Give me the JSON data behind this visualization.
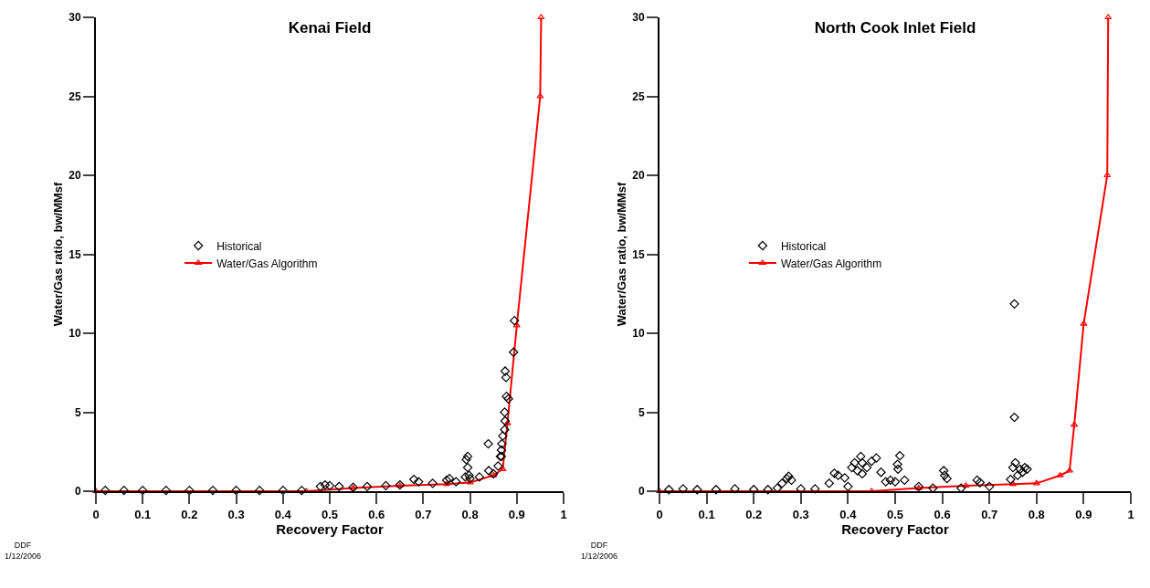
{
  "chart_data": [
    {
      "type": "scatter",
      "title": "Kenai Field",
      "xlabel": "Recovery Factor",
      "ylabel": "Water/Gas ratio, bw/MMsf",
      "annotations": [
        "DDF\n1/12/2006"
      ],
      "xlim": [
        0,
        1
      ],
      "xticks": [
        0,
        0.1,
        0.2,
        0.3,
        0.4,
        0.5,
        0.6,
        0.7,
        0.8,
        0.9,
        1
      ],
      "ylim": [
        0,
        30
      ],
      "yticks": [
        0,
        5,
        10,
        15,
        20,
        25,
        30
      ],
      "grid": false,
      "legend": "left",
      "series": [
        {
          "name": "Historical",
          "type": "scatter",
          "marker": "diamond",
          "color": "#000000",
          "x": [
            0.02,
            0.06,
            0.1,
            0.15,
            0.2,
            0.25,
            0.3,
            0.35,
            0.4,
            0.44,
            0.48,
            0.49,
            0.5,
            0.52,
            0.55,
            0.58,
            0.62,
            0.65,
            0.68,
            0.69,
            0.72,
            0.75,
            0.756,
            0.77,
            0.79,
            0.792,
            0.795,
            0.795,
            0.798,
            0.8,
            0.82,
            0.839,
            0.84,
            0.85,
            0.86,
            0.865,
            0.867,
            0.867,
            0.868,
            0.87,
            0.874,
            0.875,
            0.874,
            0.882,
            0.877,
            0.875,
            0.878,
            0.893,
            0.895
          ],
          "values": [
            0.05,
            0.05,
            0.05,
            0.05,
            0.05,
            0.05,
            0.05,
            0.05,
            0.05,
            0.05,
            0.3,
            0.4,
            0.35,
            0.3,
            0.25,
            0.3,
            0.35,
            0.4,
            0.75,
            0.6,
            0.5,
            0.7,
            0.8,
            0.6,
            0.9,
            2.0,
            2.2,
            1.5,
            1.0,
            0.8,
            0.9,
            3.0,
            1.3,
            1.1,
            1.6,
            2.2,
            2.6,
            2.2,
            3.0,
            3.5,
            3.9,
            4.45,
            5.0,
            5.85,
            7.2,
            7.6,
            6.0,
            8.8,
            10.8
          ]
        },
        {
          "name": "Water/Gas Algorithm",
          "type": "line",
          "marker": "triangle",
          "line_style": "solid",
          "color": "#ff0000",
          "x": [
            0,
            0.45,
            0.55,
            0.65,
            0.75,
            0.8,
            0.85,
            0.87,
            0.88,
            0.9,
            0.95,
            0.952
          ],
          "values": [
            0,
            0,
            0.2,
            0.35,
            0.45,
            0.55,
            1.0,
            1.4,
            4.3,
            10.5,
            25,
            30
          ]
        }
      ]
    },
    {
      "type": "scatter",
      "title": "North Cook Inlet Field",
      "xlabel": "Recovery Factor",
      "ylabel": "Water/Gas ratio, bw/MMsf",
      "annotations": [
        "DDF\n1/12/2006"
      ],
      "xlim": [
        0,
        1
      ],
      "xticks": [
        0,
        0.1,
        0.2,
        0.3,
        0.4,
        0.5,
        0.6,
        0.7,
        0.8,
        0.9,
        1
      ],
      "ylim": [
        0,
        30
      ],
      "yticks": [
        0,
        5,
        10,
        15,
        20,
        25,
        30
      ],
      "grid": false,
      "legend": "left",
      "series": [
        {
          "name": "Historical",
          "type": "scatter",
          "marker": "diamond",
          "color": "#000000",
          "x": [
            0.02,
            0.05,
            0.08,
            0.12,
            0.16,
            0.2,
            0.23,
            0.25,
            0.26,
            0.27,
            0.274,
            0.28,
            0.3,
            0.33,
            0.36,
            0.371,
            0.379,
            0.393,
            0.4,
            0.408,
            0.414,
            0.42,
            0.427,
            0.43,
            0.43,
            0.44,
            0.45,
            0.46,
            0.47,
            0.48,
            0.49,
            0.5,
            0.505,
            0.506,
            0.51,
            0.52,
            0.55,
            0.58,
            0.603,
            0.605,
            0.61,
            0.64,
            0.674,
            0.68,
            0.7,
            0.745,
            0.75,
            0.753,
            0.753,
            0.755,
            0.76,
            0.765,
            0.77,
            0.775,
            0.78
          ],
          "values": [
            0.1,
            0.15,
            0.1,
            0.1,
            0.15,
            0.1,
            0.1,
            0.2,
            0.5,
            0.8,
            0.94,
            0.7,
            0.15,
            0.15,
            0.5,
            1.14,
            1.0,
            0.85,
            0.3,
            1.5,
            1.8,
            1.3,
            2.2,
            1.8,
            1.1,
            1.5,
            1.9,
            2.1,
            1.2,
            0.6,
            0.7,
            0.6,
            1.7,
            1.4,
            2.25,
            0.7,
            0.3,
            0.2,
            1.3,
            1.0,
            0.8,
            0.2,
            0.7,
            0.55,
            0.3,
            0.75,
            1.5,
            11.86,
            4.68,
            1.8,
            1.0,
            1.4,
            1.2,
            1.5,
            1.4
          ]
        },
        {
          "name": "Water/Gas Algorithm",
          "type": "line",
          "marker": "triangle",
          "line_style": "solid",
          "color": "#ff0000",
          "x": [
            0,
            0.45,
            0.55,
            0.65,
            0.75,
            0.8,
            0.85,
            0.87,
            0.88,
            0.9,
            0.95,
            0.952
          ],
          "values": [
            0,
            0,
            0.2,
            0.35,
            0.45,
            0.5,
            1.0,
            1.3,
            4.2,
            10.6,
            20,
            30
          ]
        }
      ]
    }
  ]
}
